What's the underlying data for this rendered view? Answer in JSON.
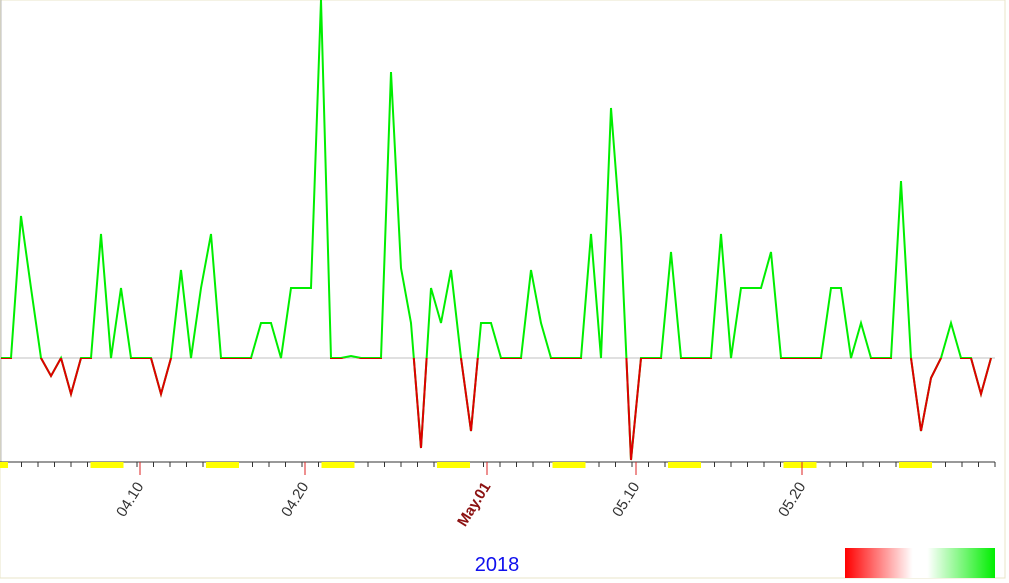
{
  "chart_data": {
    "type": "line",
    "x_label": "2018",
    "series": [
      {
        "name": null,
        "color": "#00ee00",
        "negative_color": "#dd0000",
        "values": [
          0,
          0,
          14.2,
          7,
          0,
          -1.8,
          0,
          -3.6,
          0,
          0,
          12.4,
          0,
          7,
          0,
          0,
          0,
          -3.6,
          0,
          8.8,
          0,
          7,
          12.4,
          0,
          0,
          0,
          0,
          3.5,
          3.5,
          0,
          7,
          7,
          7,
          35.8,
          0,
          0,
          0.2,
          0,
          0,
          0,
          28.6,
          9,
          3.5,
          -9,
          7,
          3.5,
          8.8,
          0,
          -7.3,
          3.5,
          3.5,
          0,
          0,
          0,
          8.8,
          3.5,
          0,
          0,
          0,
          0,
          12.4,
          0,
          25,
          12,
          -10.2,
          0,
          0,
          0,
          10.6,
          0,
          0,
          0,
          0,
          12.4,
          0,
          7,
          7,
          7,
          10.6,
          0,
          0,
          0,
          0,
          0,
          7,
          7,
          0,
          3.5,
          0,
          0,
          0,
          17.7,
          0,
          -7.3,
          -2,
          0,
          3.5,
          0,
          0,
          -3.6,
          0
        ]
      }
    ],
    "xlim": [
      0,
      99
    ],
    "ylim": [
      -10.2,
      35.8
    ],
    "xticks": [
      {
        "value": 13.9,
        "label": "04.10"
      },
      {
        "value": 30.4,
        "label": "04.20"
      },
      {
        "value": 48.6,
        "label": "May.01"
      },
      {
        "value": 63.5,
        "label": "05.10"
      },
      {
        "value": 80.1,
        "label": "05.20"
      }
    ],
    "baseline": 0
  }
}
